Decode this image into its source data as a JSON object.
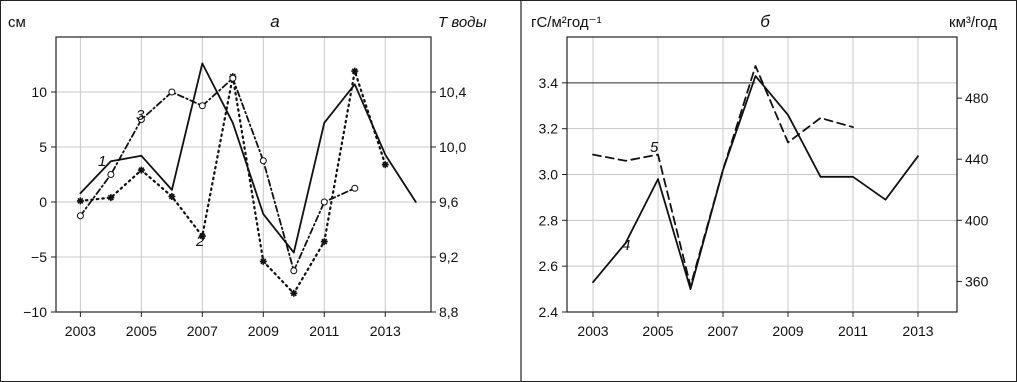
{
  "chart_data": [
    {
      "type": "line",
      "title": "а",
      "left_axis": {
        "label": "см",
        "ylim": [
          -10,
          15
        ],
        "ticks": [
          -10,
          -5,
          0,
          5,
          10
        ],
        "tick_labels": [
          "−10",
          "−5",
          "0",
          "5",
          "10"
        ]
      },
      "right_axis": {
        "label": "T воды",
        "ylim": [
          8.8,
          10.8
        ],
        "ticks": [
          8.8,
          9.2,
          9.6,
          10.0,
          10.4
        ],
        "tick_labels": [
          "8,8",
          "9,2",
          "9,6",
          "10,0",
          "10,4"
        ]
      },
      "x_axis": {
        "xlim": [
          2002.2,
          2014.5
        ],
        "ticks": [
          2003,
          2005,
          2007,
          2009,
          2011,
          2013
        ],
        "tick_labels": [
          "2003",
          "2005",
          "2007",
          "2009",
          "2011",
          "2013"
        ]
      },
      "grid": true,
      "series": [
        {
          "label": "1",
          "axis": "left",
          "style": "solid",
          "marker": "none",
          "x": [
            2003,
            2004,
            2005,
            2006,
            2007,
            2008,
            2009,
            2010,
            2011,
            2012,
            2013,
            2014
          ],
          "y": [
            0.8,
            3.7,
            4.2,
            1.1,
            12.6,
            7.2,
            -1.1,
            -4.6,
            7.2,
            10.7,
            4.3,
            0.0
          ]
        },
        {
          "label": "2",
          "axis": "left",
          "style": "dotted",
          "marker": "asterisk",
          "x": [
            2003,
            2004,
            2005,
            2006,
            2007,
            2008,
            2009,
            2010,
            2011,
            2012,
            2013
          ],
          "y": [
            0.1,
            0.4,
            2.9,
            0.5,
            -3.1,
            11.4,
            -5.4,
            -8.3,
            -3.6,
            11.9,
            3.4
          ]
        },
        {
          "label": "3",
          "axis": "right",
          "style": "dash-dot",
          "marker": "circle",
          "x": [
            2003,
            2004,
            2005,
            2006,
            2007,
            2008,
            2009,
            2010,
            2011,
            2012
          ],
          "y": [
            9.5,
            9.8,
            10.2,
            10.4,
            10.3,
            10.5,
            9.9,
            9.1,
            9.6,
            9.7
          ]
        }
      ]
    },
    {
      "type": "line",
      "title": "б",
      "left_axis": {
        "label": "гС/м²год⁻¹",
        "ylim": [
          2.4,
          3.6
        ],
        "ticks": [
          2.4,
          2.6,
          2.8,
          3.0,
          3.2,
          3.4
        ],
        "tick_labels": [
          "2.4",
          "2.6",
          "2.8",
          "3.0",
          "3.2",
          "3.4"
        ]
      },
      "right_axis": {
        "label": "км³/год",
        "ylim": [
          340,
          520
        ],
        "ticks": [
          360,
          400,
          440,
          480
        ],
        "tick_labels": [
          "360",
          "400",
          "440",
          "480"
        ]
      },
      "x_axis": {
        "xlim": [
          2002.2,
          2014.2
        ],
        "ticks": [
          2003,
          2005,
          2007,
          2009,
          2011,
          2013
        ],
        "tick_labels": [
          "2003",
          "2005",
          "2007",
          "2009",
          "2011",
          "2013"
        ]
      },
      "grid": true,
      "series": [
        {
          "label": "4",
          "axis": "left",
          "style": "solid",
          "marker": "none",
          "x": [
            2003,
            2004,
            2005,
            2006,
            2007,
            2008,
            2009,
            2010,
            2011,
            2012,
            2013
          ],
          "y": [
            2.53,
            2.7,
            2.98,
            2.5,
            3.02,
            3.43,
            3.26,
            2.99,
            2.99,
            2.89,
            3.08
          ]
        },
        {
          "label": "5",
          "axis": "right",
          "style": "dashed",
          "marker": "none",
          "x": [
            2003,
            2004,
            2005,
            2006,
            2007,
            2008,
            2009,
            2010,
            2011
          ],
          "y": [
            443,
            439,
            443,
            357,
            433,
            501,
            451,
            467,
            461
          ]
        }
      ]
    }
  ]
}
